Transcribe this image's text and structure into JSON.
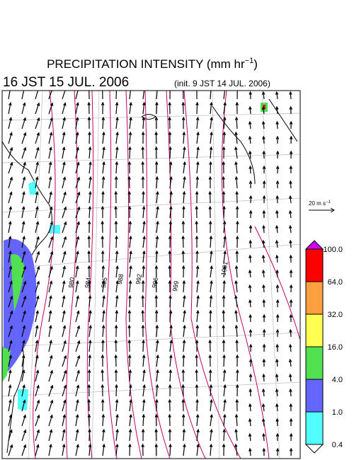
{
  "header": {
    "title": "PRECIPITATION INTENSITY (mm hr",
    "title_sup": "−1",
    "title_end": ")",
    "valid_time": "16 JST 15 JUL. 2006",
    "init_time": "(init. 9 JST 14 JUL. 2006)"
  },
  "vector_scale": {
    "label": "20 m s",
    "sup": "−1"
  },
  "colorbar": {
    "levels": [
      "100.0",
      "64.0",
      "32.0",
      "16.0",
      "4.0",
      "1.0",
      "0.4"
    ],
    "colors": [
      "#cc00ff",
      "#ff0000",
      "#ffa040",
      "#ffff50",
      "#50e050",
      "#6464ff",
      "#50ffff",
      "#ffffff"
    ]
  },
  "isobar_labels": [
    "980",
    "984",
    "985",
    "988",
    "992",
    "996",
    "999",
    "1001"
  ]
}
